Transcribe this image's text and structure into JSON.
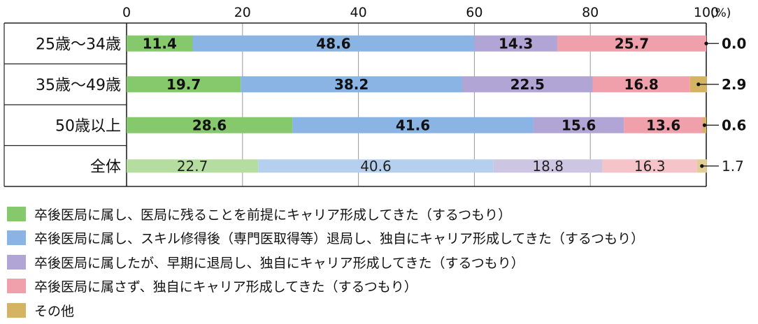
{
  "chart_data": {
    "type": "bar",
    "orientation": "horizontal",
    "stacked": true,
    "x_ticks": [
      "0",
      "20",
      "40",
      "60",
      "80",
      "100"
    ],
    "unit": "(%)",
    "xlim": [
      0,
      100
    ],
    "grid": "vertical",
    "legend_position": "bottom",
    "categories": [
      "25歳～34歳",
      "35歳～49歳",
      "50歳以上",
      "全体"
    ],
    "series": [
      {
        "name": "卒後医局に属し、医局に残ることを前提にキャリア形成してきた（するつもり）",
        "color": "#86c96d",
        "light_color": "#b5dda0",
        "values": [
          11.4,
          19.7,
          28.6,
          22.7
        ]
      },
      {
        "name": "卒後医局に属し、スキル修得後（専門医取得等）退局し、独自にキャリア形成してきた（するつもり）",
        "color": "#89b4e3",
        "light_color": "#b5cfee",
        "values": [
          48.6,
          38.2,
          41.6,
          40.6
        ]
      },
      {
        "name": "卒後医局に属したが、早期に退局し、独自にキャリア形成してきた（するつもり）",
        "color": "#b0a5d4",
        "light_color": "#cdc6e3",
        "values": [
          14.3,
          22.5,
          15.6,
          18.8
        ]
      },
      {
        "name": "卒後医局に属さず、独自にキャリア形成してきた（するつもり）",
        "color": "#f0a0ab",
        "light_color": "#f6c3c9",
        "values": [
          25.7,
          16.8,
          13.6,
          16.3
        ]
      },
      {
        "name": "その他",
        "color": "#d4b462",
        "light_color": "#e2cd94",
        "values": [
          0.0,
          2.9,
          0.6,
          1.7
        ]
      }
    ],
    "value_labels": [
      [
        "11.4",
        "48.6",
        "14.3",
        "25.7",
        "0.0"
      ],
      [
        "19.7",
        "38.2",
        "22.5",
        "16.8",
        "2.9"
      ],
      [
        "28.6",
        "41.6",
        "15.6",
        "13.6",
        "0.6"
      ],
      [
        "22.7",
        "40.6",
        "18.8",
        "16.3",
        "1.7"
      ]
    ],
    "highlighted_rows": [
      true,
      true,
      true,
      false
    ]
  }
}
